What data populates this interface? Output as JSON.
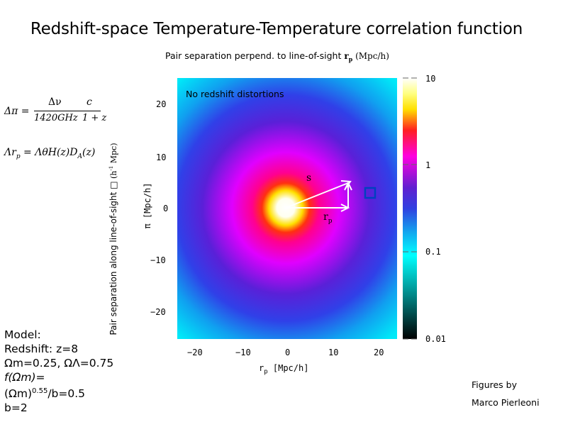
{
  "title": "Redshift-space Temperature-Temperature correlation function",
  "top_axis_label": {
    "text": "Pair separation perpend. to  line-of-sight ",
    "symbol": "r",
    "sub": "p",
    "unit": " (Mpc/h)"
  },
  "side_axis_label": {
    "text": "Pair separation along line-of-sight ",
    "box": "□",
    "unit": " (h",
    "sup": "-1",
    "unit_end": " Mpc)"
  },
  "equations": {
    "eq1": {
      "lhs": "Δπ =",
      "num1": "Δν",
      "den1": "1420GHz",
      "num2": "c",
      "den2": "1 + z"
    },
    "eq2": {
      "text": "Λr",
      "sub": "p",
      "rest": " = ΛθH(z)D",
      "sub2": "A",
      "end": "(z)"
    }
  },
  "model": {
    "line1": "Model:",
    "line2": "Redshift: z=8",
    "line3": "Ωm=0.25, ΩΛ=0.75",
    "line4": "f(Ωm)=",
    "line5_pre": "(Ωm)",
    "line5_sup": "0.55",
    "line5_post": "/b=0.5",
    "line6": "b=2"
  },
  "credits": {
    "line1": "Figures by",
    "line2": "Marco Pierleoni"
  },
  "plot": {
    "annotation": "No redshift distortions",
    "s_label": "s",
    "rp_label": "r",
    "rp_sub": "p",
    "xlabel": "r",
    "xlabel_sub": "p",
    "xlabel_unit": " [Mpc/h]",
    "ylabel": "π [Mpc/h]",
    "x_ticks": [
      "−20",
      "−10",
      "0",
      "10",
      "20"
    ],
    "y_ticks": [
      "20",
      "10",
      "0",
      "−10",
      "−20"
    ],
    "colorbar_ticks": [
      "10",
      "1",
      "0.1",
      "0.01"
    ],
    "colors": {
      "center": "#ffffff",
      "yellow": "#ffe000",
      "red": "#ff2020",
      "magenta": "#ff00ff",
      "blue": "#3010c0",
      "cyan": "#00ffff",
      "teal": "#008080"
    }
  }
}
